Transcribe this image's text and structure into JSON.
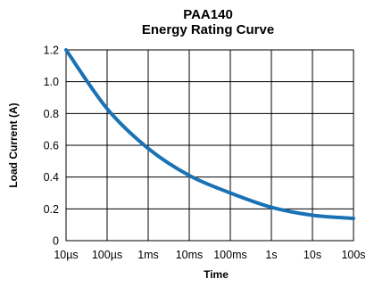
{
  "chart_data": {
    "type": "line",
    "title": "PAA140",
    "subtitle": "Energy Rating Curve",
    "xlabel": "Time",
    "ylabel": "Load Current (A)",
    "xscale": "log",
    "xlim": [
      "10µs",
      "100s"
    ],
    "ylim": [
      0,
      1.2
    ],
    "grid": true,
    "line_color": "#1a72b5",
    "x_ticks": [
      "10µs",
      "100µs",
      "1ms",
      "10ms",
      "100ms",
      "1s",
      "10s",
      "100s"
    ],
    "y_ticks": [
      "0",
      "0.2",
      "0.4",
      "0.6",
      "0.8",
      "1.0",
      "1.2"
    ],
    "series": [
      {
        "x": [
          "10µs",
          "100µs",
          "1ms",
          "10ms",
          "100ms",
          "1s",
          "10s",
          "100s"
        ],
        "y": [
          1.2,
          0.83,
          0.58,
          0.41,
          0.3,
          0.21,
          0.16,
          0.14
        ]
      }
    ]
  }
}
